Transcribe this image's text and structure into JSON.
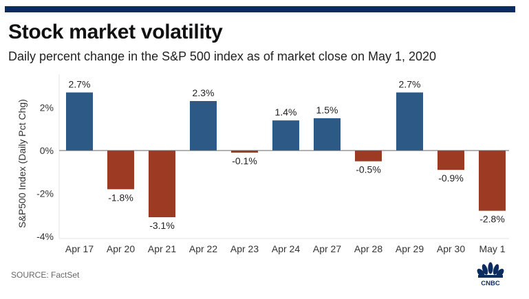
{
  "header": {
    "title": "Stock market volatility",
    "subtitle": "Daily percent change in the S&P 500 index as of market close on May 1, 2020"
  },
  "footer": {
    "source": "SOURCE: FactSet",
    "logo": "cnbc-peacock-logo",
    "logo_text": "CNBC"
  },
  "colors": {
    "topbar": "#0b2c5f",
    "positive": "#2d5986",
    "negative": "#9c3a24",
    "zero_line": "#666666",
    "grid": "#e3e3e3"
  },
  "chart_data": {
    "type": "bar",
    "title": "Stock market volatility",
    "subtitle": "Daily percent change in the S&P 500 index as of market close on May 1, 2020",
    "xlabel": "",
    "ylabel": "S&P500 Index (Daily Pct Chg)",
    "categories": [
      "Apr 17",
      "Apr 20",
      "Apr 21",
      "Apr 22",
      "Apr 23",
      "Apr 24",
      "Apr 27",
      "Apr 28",
      "Apr 29",
      "Apr 30",
      "May 1"
    ],
    "values": [
      2.7,
      -1.8,
      -3.1,
      2.3,
      -0.1,
      1.4,
      1.5,
      -0.5,
      2.7,
      -0.9,
      -2.8
    ],
    "data_labels": [
      "2.7%",
      "-1.8%",
      "-3.1%",
      "2.3%",
      "-0.1%",
      "1.4%",
      "1.5%",
      "-0.5%",
      "2.7%",
      "-0.9%",
      "-2.8%"
    ],
    "yticks": [
      2,
      0,
      -2,
      -4
    ],
    "ytick_labels": [
      "2%",
      "0%",
      "-2%",
      "-4%"
    ],
    "ylim": [
      -4.2,
      3.5
    ],
    "grid": false,
    "legend": "none"
  }
}
